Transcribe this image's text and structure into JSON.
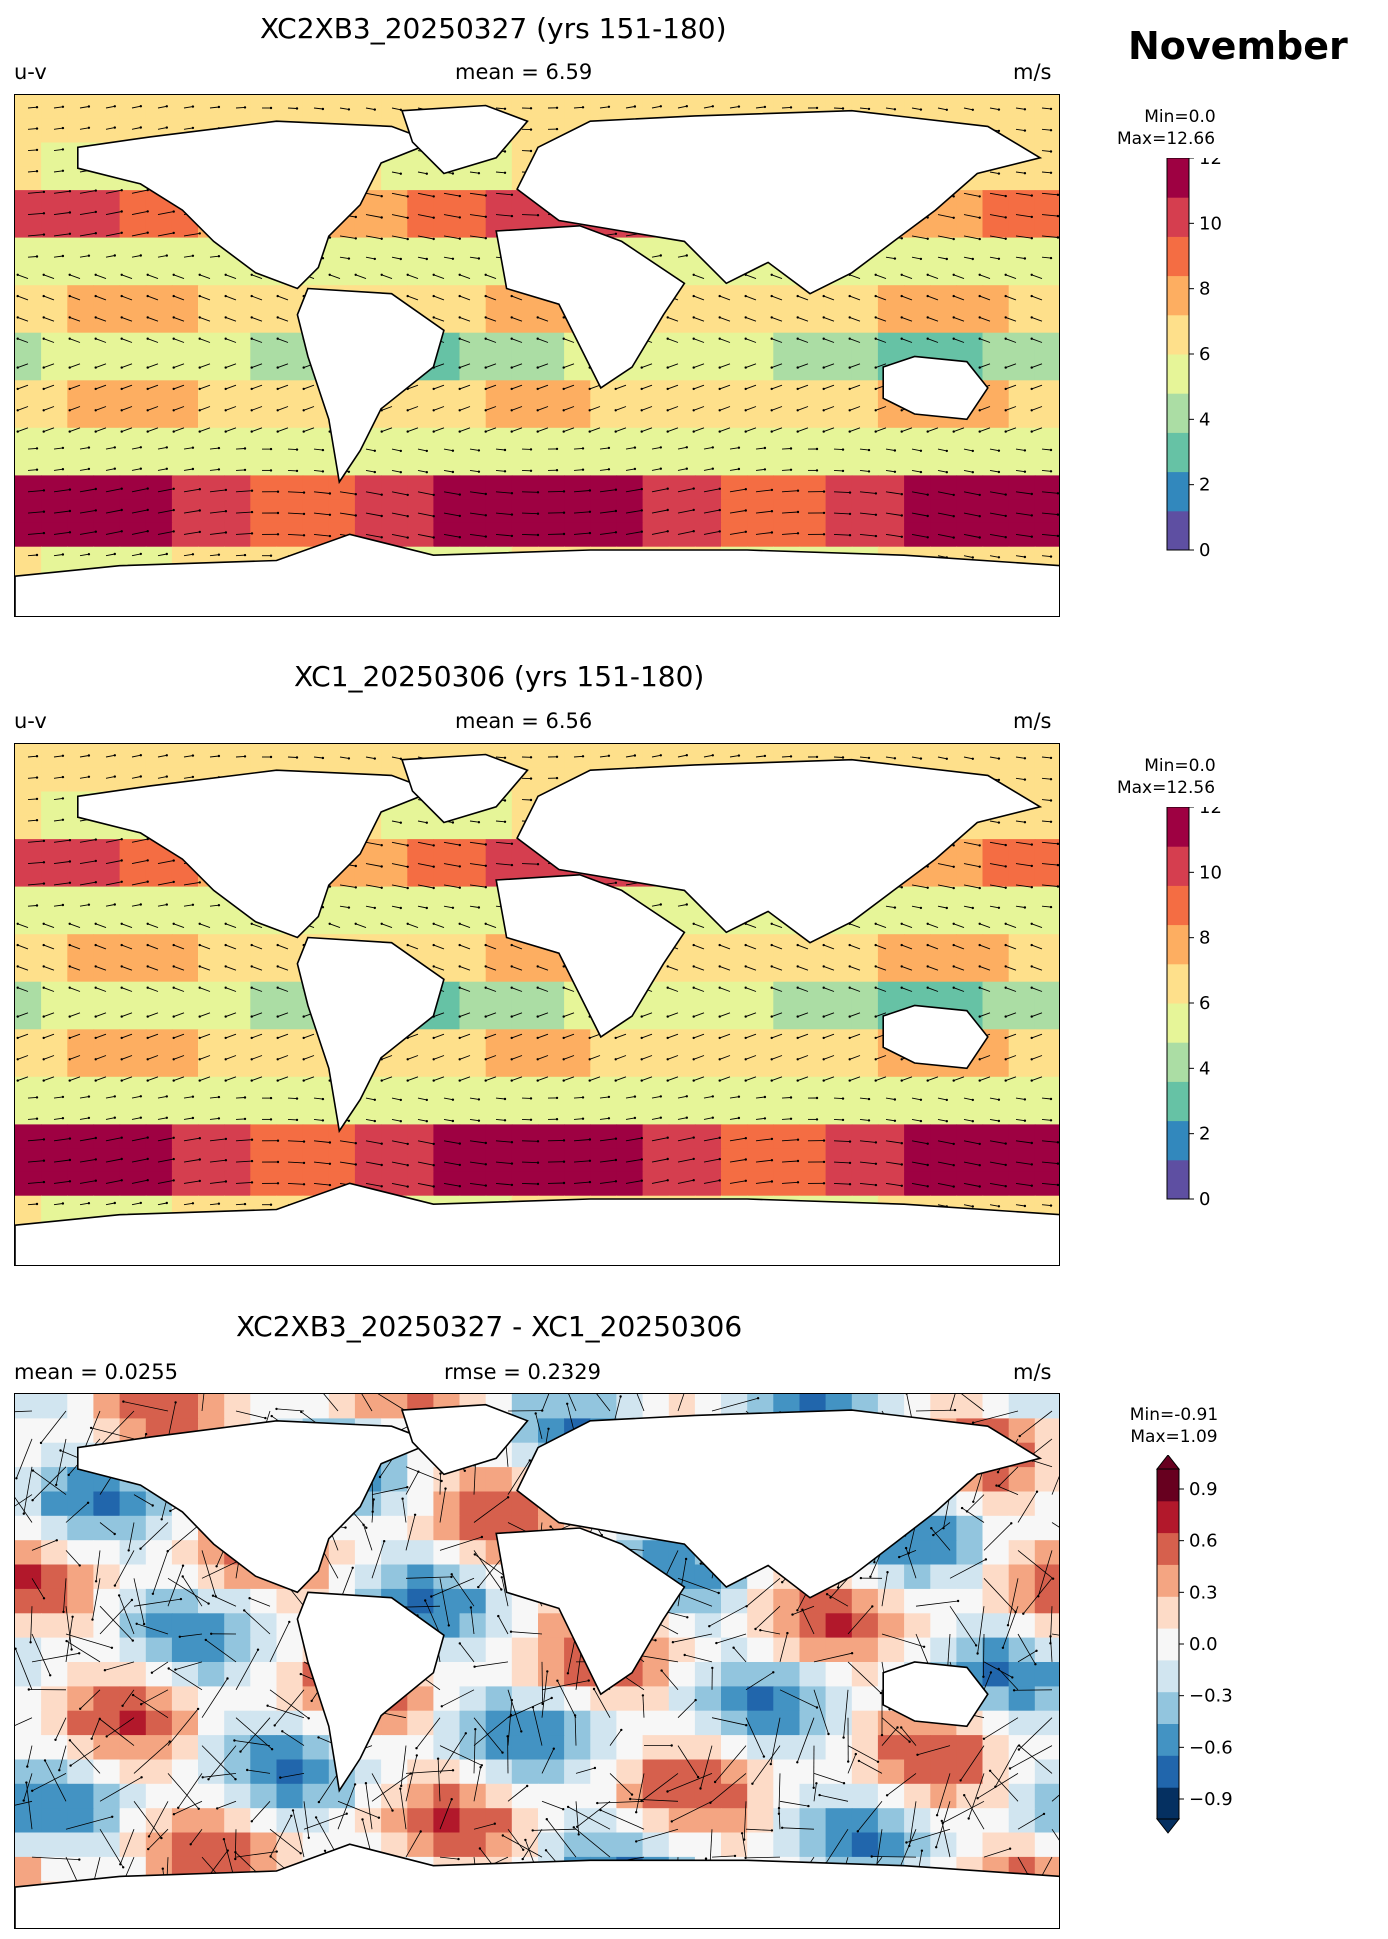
{
  "month": "November",
  "panels": [
    {
      "title": "XC2XB3_20250327 (yrs 151-180)",
      "left_label": "u-v",
      "center_label": "mean = 6.59",
      "right_label": "m/s",
      "cbar_min": "Min=0.0",
      "cbar_max": "Max=12.66",
      "ticks": [
        "0",
        "2",
        "4",
        "6",
        "8",
        "10",
        "12"
      ]
    },
    {
      "title": "XC1_20250306 (yrs 151-180)",
      "left_label": "u-v",
      "center_label": "mean = 6.56",
      "right_label": "m/s",
      "cbar_min": "Min=0.0",
      "cbar_max": "Max=12.56",
      "ticks": [
        "0",
        "2",
        "4",
        "6",
        "8",
        "10",
        "12"
      ]
    },
    {
      "title": "XC2XB3_20250327 - XC1_20250306",
      "left_label": "mean = 0.0255",
      "center_label": "rmse = 0.2329",
      "right_label": "m/s",
      "cbar_min": "Min=-0.91",
      "cbar_max": "Max=1.09",
      "ticks": [
        "0.9",
        "0.6",
        "0.3",
        "0.0",
        "−0.3",
        "−0.6",
        "−0.9"
      ]
    }
  ],
  "colors": {
    "seq": [
      "#5e4fa2",
      "#3288bd",
      "#66c2a5",
      "#abdda4",
      "#e6f598",
      "#fee08b",
      "#fdae61",
      "#f46d43",
      "#d53e4f",
      "#9e0142"
    ],
    "div": [
      "#053061",
      "#2166ac",
      "#4393c3",
      "#92c5de",
      "#d1e5f0",
      "#f7f7f7",
      "#fddbc7",
      "#f4a582",
      "#d6604d",
      "#b2182b",
      "#67001f"
    ]
  }
}
